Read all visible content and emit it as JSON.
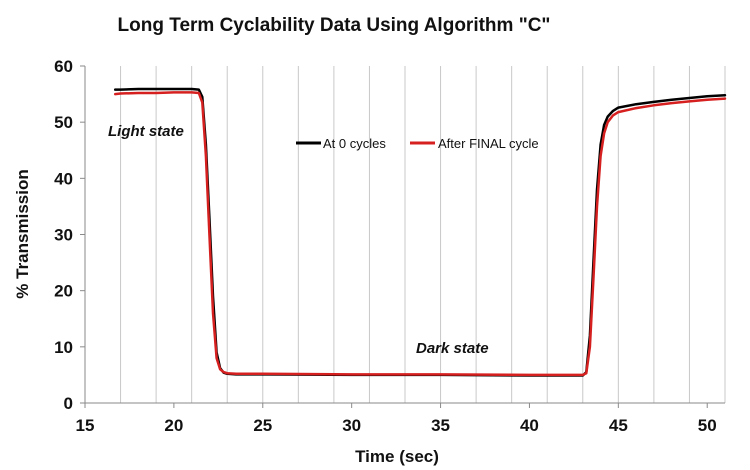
{
  "chart_data": {
    "type": "line",
    "title": "Long Term Cyclability Data Using Algorithm \"C\"",
    "xlabel": "Time (sec)",
    "ylabel": "% Transmission",
    "xlim": [
      15,
      51
    ],
    "ylim": [
      0,
      60
    ],
    "xticks": [
      15,
      20,
      25,
      30,
      35,
      40,
      45,
      50
    ],
    "yticks": [
      0,
      10,
      20,
      30,
      40,
      50,
      60
    ],
    "grid": "vertical",
    "legend_position": "top-center",
    "series": [
      {
        "name": "At 0 cycles",
        "color": "#000000",
        "x": [
          16.7,
          17,
          18,
          19,
          20,
          21,
          21.4,
          21.6,
          21.8,
          22.0,
          22.2,
          22.4,
          22.6,
          22.8,
          23.0,
          23.5,
          25,
          30,
          35,
          40,
          43.0,
          43.2,
          43.4,
          43.6,
          43.8,
          44.0,
          44.2,
          44.4,
          44.7,
          45,
          46,
          47,
          48,
          49,
          50,
          51
        ],
        "y": [
          55.8,
          55.8,
          55.9,
          55.9,
          55.9,
          55.9,
          55.8,
          54.5,
          46,
          33,
          19,
          9,
          6.2,
          5.4,
          5.2,
          5.1,
          5.1,
          5.0,
          5.0,
          4.9,
          4.9,
          5.5,
          12,
          25,
          38,
          46,
          49.5,
          51,
          52,
          52.6,
          53.2,
          53.6,
          54.0,
          54.3,
          54.6,
          54.8
        ],
        "color_hex": "#000000"
      },
      {
        "name": "After FINAL cycle",
        "color": "#d62020",
        "x": [
          16.7,
          17,
          18,
          19,
          20,
          21,
          21.4,
          21.6,
          21.8,
          22.0,
          22.2,
          22.4,
          22.6,
          22.8,
          23.0,
          23.5,
          25,
          30,
          35,
          40,
          43.0,
          43.2,
          43.4,
          43.6,
          43.8,
          44.0,
          44.2,
          44.4,
          44.7,
          45,
          46,
          47,
          48,
          49,
          50,
          51
        ],
        "y": [
          55.0,
          55.1,
          55.2,
          55.2,
          55.3,
          55.3,
          55.2,
          53.5,
          44,
          30,
          16,
          8,
          6.0,
          5.5,
          5.3,
          5.2,
          5.2,
          5.1,
          5.1,
          5.0,
          5.0,
          5.3,
          10,
          22,
          35,
          44,
          48,
          50,
          51.2,
          51.8,
          52.5,
          53.0,
          53.4,
          53.7,
          54.0,
          54.2
        ]
      }
    ],
    "annotations": [
      {
        "text": "Light state",
        "x": 16.7,
        "y": 48.5
      },
      {
        "text": "Dark state",
        "x": 37.0,
        "y": 9.2
      }
    ]
  }
}
